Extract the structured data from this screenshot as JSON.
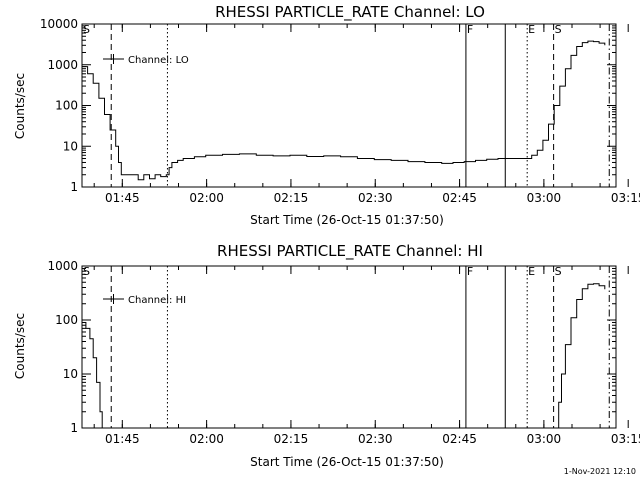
{
  "chart_data": [
    {
      "type": "line",
      "title": "RHESSI PARTICLE_RATE Channel: LO",
      "xlabel": "Start Time (26-Oct-15 01:37:50)",
      "ylabel": "Counts/sec",
      "yscale": "log",
      "ylim": [
        1,
        10000
      ],
      "xlim": [
        0,
        95
      ],
      "ytick_labels": [
        "1",
        "10",
        "100",
        "1000",
        "10000"
      ],
      "xtick_labels": [
        "01:45",
        "02:00",
        "02:15",
        "02:30",
        "02:45",
        "03:00",
        "03:15"
      ],
      "legend": {
        "label": "Channel: LO",
        "placement": "top-left"
      },
      "series": [
        {
          "x": [
            0,
            1,
            2,
            3,
            4,
            5,
            6,
            6.5,
            7,
            8,
            9,
            10,
            11,
            12,
            13,
            14,
            15,
            15.5,
            16,
            17,
            18,
            20,
            22,
            25,
            28,
            31,
            34,
            37,
            40,
            43,
            46,
            49,
            52,
            55,
            58,
            61,
            64,
            66,
            68,
            70,
            72,
            74,
            76,
            78,
            80,
            81,
            82,
            83,
            84,
            85,
            86,
            87,
            88,
            89,
            90,
            91,
            92,
            93
          ],
          "y": [
            900,
            600,
            350,
            150,
            60,
            25,
            10,
            4,
            2,
            2,
            2,
            1.5,
            2,
            1.6,
            2,
            1.8,
            2,
            3,
            4,
            4.5,
            5,
            5.5,
            6,
            6.3,
            6.5,
            6,
            5.8,
            6,
            5.6,
            5.8,
            5.5,
            5,
            4.7,
            4.5,
            4.2,
            4,
            3.8,
            4,
            4.2,
            4.5,
            4.8,
            5,
            5,
            5,
            6,
            8,
            14,
            35,
            100,
            300,
            800,
            1700,
            2800,
            3500,
            3800,
            3700,
            3400,
            3000
          ]
        }
      ],
      "event_markers": [
        {
          "label": "S",
          "x": 0,
          "style": "dashed"
        },
        {
          "label": "",
          "x": 5.2,
          "style": "dashed"
        },
        {
          "label": "",
          "x": 15.2,
          "style": "dotted"
        },
        {
          "label": "F",
          "x": 68.3,
          "style": "solid"
        },
        {
          "label": "",
          "x": 75.3,
          "style": "solid"
        },
        {
          "label": "E",
          "x": 79.2,
          "style": "dotted"
        },
        {
          "label": "S",
          "x": 83.9,
          "style": "dashed"
        },
        {
          "label": "",
          "x": 93.8,
          "style": "dashdot"
        }
      ]
    },
    {
      "type": "line",
      "title": "RHESSI PARTICLE_RATE Channel: HI",
      "xlabel": "Start Time (26-Oct-15 01:37:50)",
      "ylabel": "Counts/sec",
      "yscale": "log",
      "ylim": [
        1,
        1000
      ],
      "xlim": [
        0,
        95
      ],
      "ytick_labels": [
        "1",
        "10",
        "100",
        "1000"
      ],
      "xtick_labels": [
        "01:45",
        "02:00",
        "02:15",
        "02:30",
        "02:45",
        "03:00",
        "03:15"
      ],
      "legend": {
        "label": "Channel: HI",
        "placement": "top-left"
      },
      "series": [
        {
          "x": [
            0,
            0.7,
            1.4,
            2,
            2.6,
            3.2,
            3.6
          ],
          "y": [
            90,
            70,
            45,
            20,
            7,
            2,
            1
          ]
        },
        {
          "x": [
            84.4,
            84.8,
            85.3,
            86,
            87,
            88,
            89,
            90,
            91,
            92,
            93
          ],
          "y": [
            1,
            3,
            10,
            35,
            110,
            240,
            380,
            460,
            470,
            430,
            370
          ]
        }
      ],
      "event_markers": [
        {
          "label": "S",
          "x": 0,
          "style": "dashed"
        },
        {
          "label": "",
          "x": 5.2,
          "style": "dashed"
        },
        {
          "label": "",
          "x": 15.2,
          "style": "dotted"
        },
        {
          "label": "F",
          "x": 68.3,
          "style": "solid"
        },
        {
          "label": "",
          "x": 75.3,
          "style": "solid"
        },
        {
          "label": "E",
          "x": 79.2,
          "style": "dotted"
        },
        {
          "label": "S",
          "x": 83.9,
          "style": "dashed"
        },
        {
          "label": "",
          "x": 93.8,
          "style": "dashdot"
        }
      ]
    }
  ],
  "footer": {
    "stamp": "1-Nov-2021 12:10"
  }
}
